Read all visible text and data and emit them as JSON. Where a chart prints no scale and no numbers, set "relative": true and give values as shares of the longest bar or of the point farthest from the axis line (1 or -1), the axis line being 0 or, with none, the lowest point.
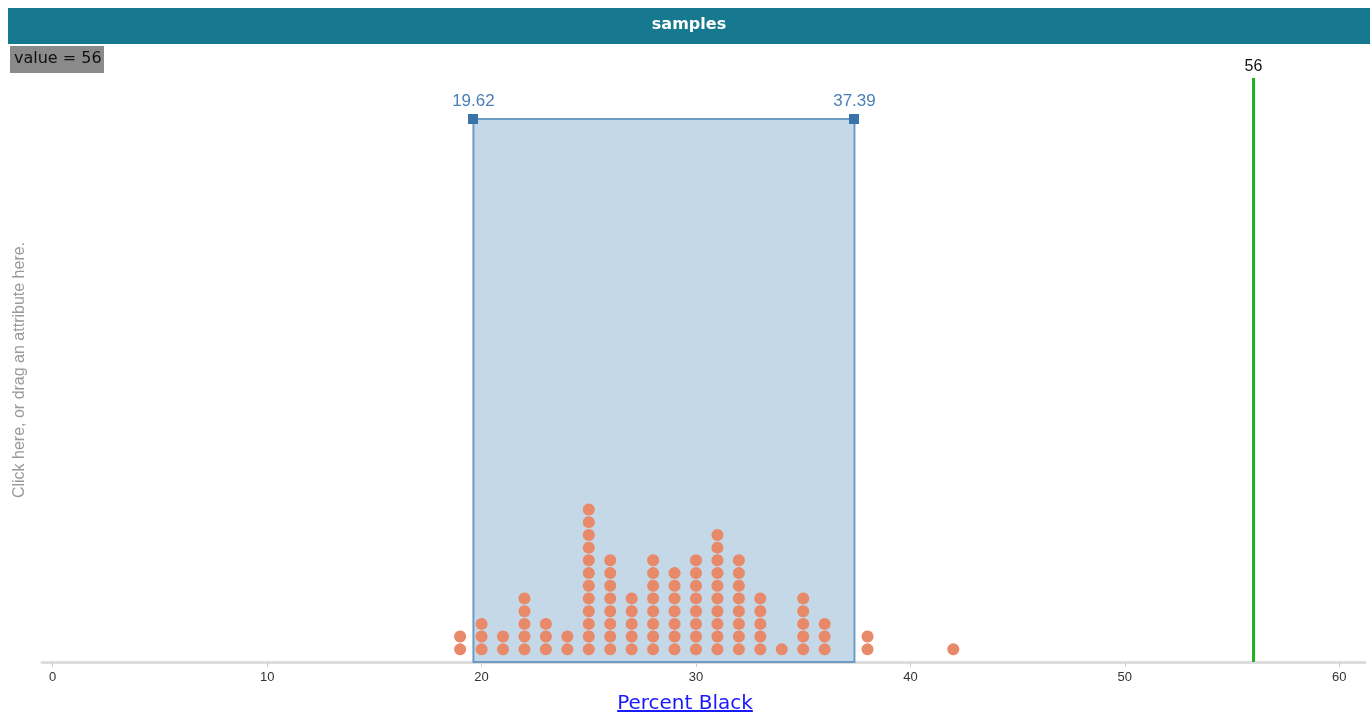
{
  "chart_data": {
    "type": "scatter",
    "title": "samples",
    "xlabel": "Percent Black",
    "ylabel": "Click here, or drag an attribute here.",
    "annotations": [
      "value = 56",
      "19.62",
      "37.39"
    ],
    "x": [
      19,
      19,
      20,
      20,
      20,
      21,
      21,
      22,
      22,
      22,
      22,
      22,
      23,
      23,
      23,
      24,
      24,
      25,
      25,
      25,
      25,
      25,
      25,
      25,
      25,
      25,
      25,
      25,
      25,
      26,
      26,
      26,
      26,
      26,
      26,
      26,
      26,
      27,
      27,
      27,
      27,
      27,
      28,
      28,
      28,
      28,
      28,
      28,
      28,
      28,
      29,
      29,
      29,
      29,
      29,
      29,
      29,
      30,
      30,
      30,
      30,
      30,
      30,
      30,
      30,
      31,
      31,
      31,
      31,
      31,
      31,
      31,
      31,
      31,
      31,
      32,
      32,
      32,
      32,
      32,
      32,
      32,
      32,
      33,
      33,
      33,
      33,
      33,
      34,
      35,
      35,
      35,
      35,
      35,
      36,
      36,
      36,
      38,
      38,
      42
    ],
    "values": [
      0.083,
      0.167,
      0.083,
      0.167,
      0.25,
      0.083,
      0.167,
      0.083,
      0.167,
      0.25,
      0.333,
      0.417,
      0.083,
      0.167,
      0.25,
      0.083,
      0.167,
      0.083,
      0.167,
      0.25,
      0.333,
      0.417,
      0.5,
      0.583,
      0.667,
      0.75,
      0.833,
      0.917,
      1,
      0.083,
      0.167,
      0.25,
      0.333,
      0.417,
      0.5,
      0.583,
      0.667,
      0.083,
      0.167,
      0.25,
      0.333,
      0.417,
      0.083,
      0.167,
      0.25,
      0.333,
      0.417,
      0.5,
      0.583,
      0.667,
      0.083,
      0.167,
      0.25,
      0.333,
      0.417,
      0.5,
      0.583,
      0.083,
      0.167,
      0.25,
      0.333,
      0.417,
      0.5,
      0.583,
      0.667,
      0.083,
      0.167,
      0.25,
      0.333,
      0.417,
      0.5,
      0.583,
      0.667,
      0.75,
      0.833,
      0.083,
      0.167,
      0.25,
      0.333,
      0.417,
      0.5,
      0.583,
      0.667,
      0.083,
      0.167,
      0.25,
      0.333,
      0.417,
      0.083,
      0.083,
      0.167,
      0.25,
      0.333,
      0.417,
      0.083,
      0.167,
      0.25,
      0.083,
      0.167,
      0.083
    ],
    "relative": true,
    "color": "#e8896a",
    "marker": "circle",
    "xlim": [
      -0.5,
      61.2
    ],
    "xticks": [
      0,
      10,
      20,
      30,
      40,
      50,
      60
    ],
    "tick_labels": "x",
    "grid": false,
    "ref_lines": [
      {
        "axis": "x",
        "value": 56,
        "label": "56",
        "color": "#1fb31f"
      }
    ],
    "bands": [
      {
        "axis": "x",
        "from": 19.62,
        "to": 37.39,
        "color": "#c5d8e7"
      }
    ]
  }
}
